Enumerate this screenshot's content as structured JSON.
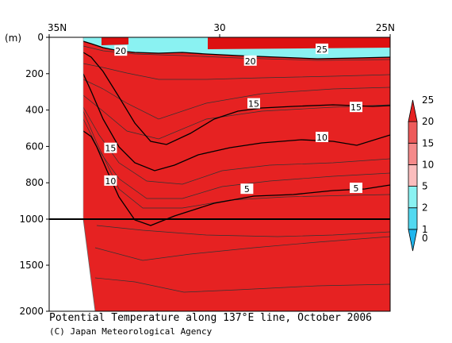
{
  "chart_data": {
    "type": "contour",
    "title": "Potential Temperature along 137°E line, October 2006",
    "credit": "(C) Japan Meteorological Agency",
    "y_unit_label": "(m)",
    "x_tick_labels": [
      {
        "lat": 35,
        "label": "35N"
      },
      {
        "lat": 30,
        "label": "30"
      },
      {
        "lat": 25,
        "label": "25N"
      }
    ],
    "y_ticks_upper": [
      0,
      200,
      400,
      600,
      800,
      1000
    ],
    "y_ticks_lower": [
      1000,
      1500,
      2000
    ],
    "y_break_depth": 1000,
    "xlim_lat": [
      35,
      25
    ],
    "ylim_depth_m": [
      0,
      2000
    ],
    "colorbar": {
      "levels": [
        "0",
        "1",
        "2",
        "5",
        "10",
        "15",
        "20",
        "25"
      ],
      "colors": [
        "#1fb6ee",
        "#52d9f0",
        "#8af2f2",
        "#fbbdbd",
        "#f58a8a",
        "#ee5a5a",
        "#e62222"
      ]
    },
    "contour_labels": [
      {
        "value": "20",
        "lat": 32.9,
        "depth": 75
      },
      {
        "value": "20",
        "lat": 29.1,
        "depth": 130
      },
      {
        "value": "25",
        "lat": 27.0,
        "depth": 65
      },
      {
        "value": "15",
        "lat": 29.0,
        "depth": 365
      },
      {
        "value": "15",
        "lat": 26.0,
        "depth": 385
      },
      {
        "value": "15",
        "lat": 33.2,
        "depth": 610
      },
      {
        "value": "10",
        "lat": 27.0,
        "depth": 550
      },
      {
        "value": "10",
        "lat": 33.2,
        "depth": 790
      },
      {
        "value": "5",
        "lat": 29.2,
        "depth": 835
      },
      {
        "value": "5",
        "lat": 26.0,
        "depth": 830
      }
    ]
  }
}
